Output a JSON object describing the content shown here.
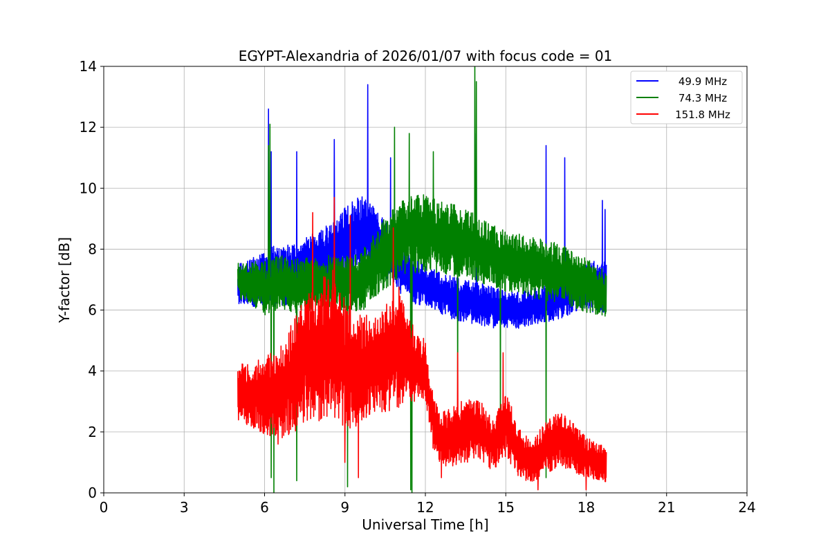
{
  "chart_data": {
    "type": "line",
    "title": "EGYPT-Alexandria of 2026/01/07 with focus code = 01",
    "xlabel": "Universal Time [h]",
    "ylabel": "Y-factor [dB]",
    "xlim": [
      0,
      24
    ],
    "ylim": [
      0,
      14
    ],
    "xticks": [
      0,
      3,
      6,
      9,
      12,
      15,
      18,
      21,
      24
    ],
    "yticks": [
      0,
      2,
      4,
      6,
      8,
      10,
      12,
      14
    ],
    "grid": true,
    "legend_position": "top-right",
    "series": [
      {
        "name": "49.9 MHz",
        "color": "#0000ff",
        "x": [
          5.0,
          5.5,
          6.0,
          6.3,
          6.6,
          7.0,
          7.5,
          8.0,
          8.5,
          9.0,
          9.5,
          10.0,
          10.5,
          11.0,
          11.5,
          12.0,
          12.5,
          13.0,
          13.5,
          14.0,
          14.5,
          15.0,
          15.5,
          16.0,
          16.5,
          17.0,
          17.5,
          18.0,
          18.5,
          18.75
        ],
        "mean": [
          6.8,
          6.9,
          7.0,
          7.1,
          7.1,
          7.2,
          7.4,
          7.6,
          7.8,
          8.2,
          8.6,
          8.4,
          8.0,
          7.4,
          7.0,
          6.8,
          6.6,
          6.4,
          6.3,
          6.2,
          6.1,
          6.0,
          6.0,
          6.1,
          6.2,
          6.4,
          6.6,
          6.7,
          6.8,
          6.8
        ],
        "amplitude": [
          0.7,
          0.8,
          0.9,
          1.0,
          1.0,
          1.0,
          1.0,
          1.0,
          1.1,
          1.2,
          1.2,
          1.1,
          1.0,
          0.8,
          0.8,
          0.7,
          0.7,
          0.7,
          0.7,
          0.7,
          0.7,
          0.6,
          0.6,
          0.6,
          0.6,
          0.7,
          0.7,
          0.8,
          0.9,
          0.9
        ],
        "spikes": [
          [
            6.15,
            12.6
          ],
          [
            6.25,
            11.2
          ],
          [
            7.2,
            11.2
          ],
          [
            8.6,
            11.6
          ],
          [
            9.85,
            13.4
          ],
          [
            10.7,
            11.0
          ],
          [
            13.9,
            11.8
          ],
          [
            16.5,
            11.4
          ],
          [
            17.2,
            11.0
          ],
          [
            18.6,
            9.6
          ],
          [
            18.7,
            9.3
          ]
        ]
      },
      {
        "name": "74.3 MHz",
        "color": "#008000",
        "x": [
          5.0,
          5.5,
          6.0,
          6.3,
          6.6,
          7.0,
          7.5,
          8.0,
          8.5,
          9.0,
          9.5,
          10.0,
          10.5,
          11.0,
          11.5,
          12.0,
          12.5,
          13.0,
          13.5,
          14.0,
          14.5,
          15.0,
          15.5,
          16.0,
          16.5,
          17.0,
          17.5,
          18.0,
          18.5,
          18.75
        ],
        "mean": [
          7.0,
          6.9,
          6.7,
          6.8,
          6.9,
          6.8,
          6.8,
          6.9,
          6.9,
          6.9,
          6.9,
          7.3,
          7.9,
          8.3,
          8.5,
          8.5,
          8.4,
          8.3,
          8.2,
          8.0,
          7.8,
          7.6,
          7.5,
          7.4,
          7.3,
          7.2,
          7.0,
          6.8,
          6.6,
          6.5
        ],
        "amplitude": [
          0.6,
          0.7,
          0.9,
          0.9,
          0.9,
          0.9,
          0.9,
          0.9,
          0.9,
          0.9,
          1.0,
          1.1,
          1.2,
          1.3,
          1.3,
          1.3,
          1.2,
          1.2,
          1.1,
          1.1,
          1.0,
          1.0,
          1.0,
          1.0,
          1.0,
          1.0,
          0.9,
          0.9,
          0.8,
          0.8
        ],
        "spikes": [
          [
            6.15,
            11.4
          ],
          [
            6.2,
            12.1
          ],
          [
            10.85,
            12.0
          ],
          [
            11.4,
            11.8
          ],
          [
            12.3,
            11.2
          ],
          [
            13.85,
            14.0
          ],
          [
            13.9,
            13.5
          ]
        ],
        "dips": [
          [
            6.25,
            0.5
          ],
          [
            6.35,
            0.0
          ],
          [
            7.2,
            0.4
          ],
          [
            9.1,
            0.2
          ],
          [
            11.5,
            0.0
          ],
          [
            11.45,
            0.1
          ],
          [
            13.2,
            2.9
          ],
          [
            14.8,
            2.2
          ],
          [
            16.5,
            0.5
          ]
        ]
      },
      {
        "name": "151.8 MHz",
        "color": "#ff0000",
        "x": [
          5.0,
          5.5,
          6.0,
          6.5,
          7.0,
          7.5,
          8.0,
          8.5,
          9.0,
          9.5,
          10.0,
          10.5,
          11.0,
          11.5,
          12.0,
          12.3,
          12.6,
          13.0,
          13.5,
          14.0,
          14.5,
          15.0,
          15.5,
          16.0,
          16.5,
          17.0,
          17.5,
          18.0,
          18.5,
          18.75
        ],
        "mean": [
          3.3,
          3.2,
          3.2,
          3.2,
          3.8,
          4.5,
          4.6,
          5.0,
          4.2,
          4.0,
          4.2,
          4.4,
          4.8,
          4.3,
          4.0,
          2.3,
          1.8,
          1.8,
          2.0,
          2.1,
          1.6,
          2.3,
          1.3,
          1.0,
          1.5,
          1.8,
          1.5,
          1.2,
          1.0,
          0.9
        ],
        "amplitude": [
          0.9,
          1.1,
          1.3,
          1.5,
          1.9,
          2.2,
          2.3,
          2.4,
          2.2,
          1.9,
          1.6,
          1.8,
          2.0,
          1.3,
          1.0,
          0.9,
          0.9,
          1.0,
          1.1,
          1.0,
          0.9,
          1.1,
          0.8,
          0.7,
          0.9,
          0.9,
          0.8,
          0.7,
          0.6,
          0.6
        ],
        "spikes": [
          [
            7.8,
            9.2
          ],
          [
            8.6,
            9.7
          ],
          [
            9.2,
            9.1
          ],
          [
            10.8,
            8.7
          ],
          [
            12.6,
            4.3
          ],
          [
            13.2,
            4.6
          ],
          [
            14.9,
            4.6
          ]
        ],
        "dips": [
          [
            6.5,
            1.6
          ],
          [
            9.0,
            1.0
          ],
          [
            9.5,
            0.5
          ],
          [
            12.6,
            0.5
          ],
          [
            16.2,
            0.1
          ],
          [
            18.0,
            0.1
          ]
        ]
      }
    ]
  }
}
